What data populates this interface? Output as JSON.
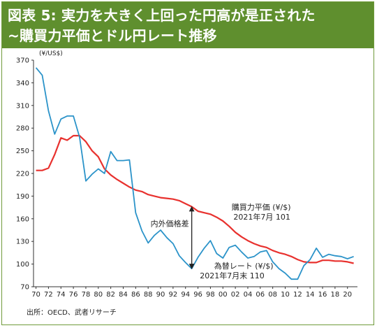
{
  "figure": {
    "title_line1": "図表 5: 実力を大きく上回った円高が是正された",
    "title_line2": "~購買力平価とドル円レート推移",
    "source": "出所：OECD、武者リサーチ"
  },
  "chart_data": {
    "type": "line",
    "unit_label": "(¥/US$)",
    "xlabel": "",
    "ylabel": "",
    "ylim": [
      70,
      370
    ],
    "yticks": [
      70,
      100,
      130,
      160,
      190,
      220,
      250,
      280,
      310,
      340,
      370
    ],
    "xlim": [
      1969.6,
      2021.6
    ],
    "xtick_years": [
      1970,
      1972,
      1974,
      1976,
      1978,
      1980,
      1982,
      1984,
      1986,
      1988,
      1990,
      1992,
      1994,
      1996,
      1998,
      2000,
      2002,
      2004,
      2006,
      2008,
      2010,
      2012,
      2014,
      2016,
      2018,
      2020
    ],
    "xtick_labels": [
      "70",
      "72",
      "74",
      "76",
      "78",
      "80",
      "82",
      "84",
      "86",
      "88",
      "90",
      "92",
      "94",
      "96",
      "98",
      "00",
      "02",
      "04",
      "06",
      "08",
      "10",
      "12",
      "14",
      "16",
      "18",
      "20"
    ],
    "grid": false,
    "legend": "none",
    "series": [
      {
        "key": "ppp",
        "color": "#e8312e",
        "x": [
          1970,
          1971,
          1972,
          1973,
          1974,
          1975,
          1976,
          1977,
          1978,
          1979,
          1980,
          1981,
          1982,
          1983,
          1984,
          1985,
          1986,
          1987,
          1988,
          1989,
          1990,
          1991,
          1992,
          1993,
          1994,
          1995,
          1996,
          1997,
          1998,
          1999,
          2000,
          2001,
          2002,
          2003,
          2004,
          2005,
          2006,
          2007,
          2008,
          2009,
          2010,
          2011,
          2012,
          2013,
          2014,
          2015,
          2016,
          2017,
          2018,
          2019,
          2020,
          2021
        ],
        "values": [
          224,
          224,
          227,
          245,
          267,
          264,
          270,
          270,
          262,
          250,
          242,
          226,
          218,
          212,
          207,
          202,
          198,
          196,
          192,
          190,
          188,
          187,
          186,
          184,
          180,
          176,
          170,
          168,
          166,
          162,
          157,
          150,
          142,
          136,
          131,
          127,
          124,
          122,
          118,
          115,
          113,
          110,
          106,
          103,
          102,
          102,
          105,
          105,
          104,
          104,
          103,
          101
        ]
      },
      {
        "key": "spot",
        "color": "#2b93c9",
        "x": [
          1970,
          1971,
          1972,
          1973,
          1974,
          1975,
          1976,
          1977,
          1978,
          1979,
          1980,
          1981,
          1982,
          1983,
          1984,
          1985,
          1986,
          1987,
          1988,
          1989,
          1990,
          1991,
          1992,
          1993,
          1994,
          1995,
          1996,
          1997,
          1998,
          1999,
          2000,
          2001,
          2002,
          2003,
          2004,
          2005,
          2006,
          2007,
          2008,
          2009,
          2010,
          2011,
          2012,
          2013,
          2014,
          2015,
          2016,
          2017,
          2018,
          2019,
          2020,
          2021
        ],
        "values": [
          360,
          350,
          303,
          272,
          292,
          296,
          296,
          268,
          210,
          219,
          226,
          220,
          249,
          237,
          237,
          238,
          168,
          144,
          128,
          138,
          145,
          135,
          127,
          111,
          102,
          94,
          109,
          121,
          131,
          114,
          108,
          122,
          125,
          116,
          108,
          110,
          116,
          118,
          103,
          94,
          88,
          80,
          80,
          98,
          106,
          121,
          109,
          113,
          111,
          110,
          107,
          110
        ]
      }
    ],
    "annotations": {
      "gap_label": "内外価格差",
      "ppp_label_line1": "購買力平価 (¥/$)",
      "ppp_label_line2": "2021年7月 101",
      "spot_label_line1": "為替レート (¥/$)",
      "spot_label_line2": "2021年7月末 110",
      "gap_year": 1995,
      "gap_top": 176,
      "gap_bottom": 94
    }
  }
}
